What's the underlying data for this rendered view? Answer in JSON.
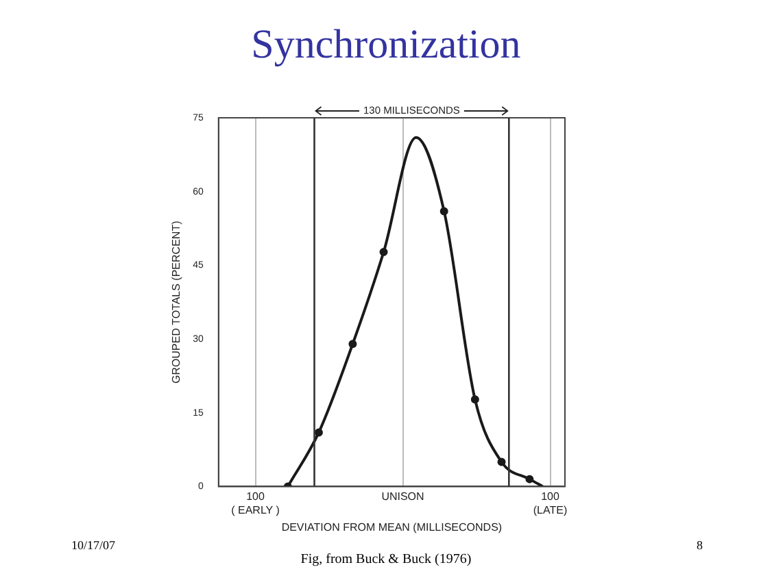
{
  "chart_data": {
    "type": "line",
    "title": "Synchronization",
    "xlabel": "DEVIATION FROM MEAN (MILLISECONDS)",
    "ylabel": "GROUPED TOTALS (PERCENT)",
    "series": [
      {
        "color": "#1a1a1a",
        "marker": "none",
        "x": [
          -78,
          -57,
          -34,
          -13,
          9,
          28,
          49,
          67,
          86,
          95
        ],
        "values": [
          0,
          11,
          29,
          47.7,
          71,
          56,
          17.7,
          5,
          1.5,
          0
        ]
      },
      {
        "type": "scatter",
        "color": "#1a1a1a",
        "marker": "circle",
        "x": [
          -78,
          -57,
          -34,
          -13,
          28,
          49,
          67,
          86
        ],
        "values": [
          0,
          11,
          29,
          47.7,
          56,
          17.7,
          5,
          1.5
        ]
      }
    ],
    "xlim": [
      -125,
      110
    ],
    "xticks": [
      {
        "value": -100,
        "label": "100\n( EARLY )"
      },
      {
        "value": 0,
        "label": "UNISON"
      },
      {
        "value": 100,
        "label": "100\n(LATE)"
      }
    ],
    "ylim": [
      0,
      75
    ],
    "yticks": [
      0,
      15,
      30,
      45,
      60,
      75
    ],
    "grid": "x",
    "legend": false,
    "ref_lines": [
      {
        "axis": "x",
        "value": -60,
        "color": "#333333"
      },
      {
        "axis": "x",
        "value": 72,
        "color": "#333333"
      }
    ],
    "annotations": [
      "130 MILLISECONDS",
      "10/17/07",
      "Fig, from Buck & Buck (1976)",
      "8"
    ]
  }
}
